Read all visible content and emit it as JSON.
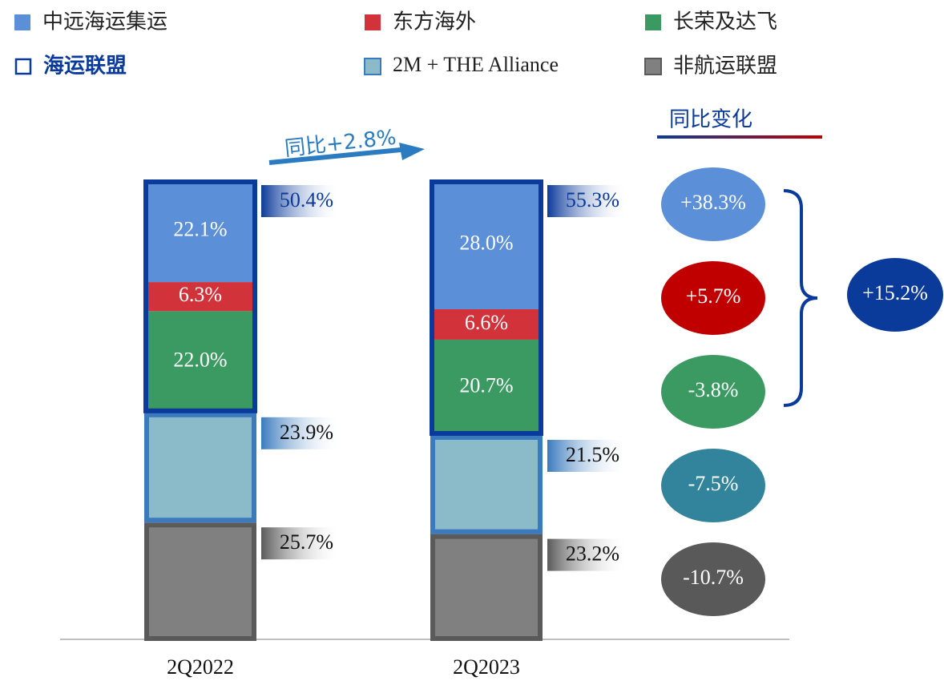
{
  "chart_data": {
    "type": "bar",
    "stacked": true,
    "categories": [
      "2Q2022",
      "2Q2023"
    ],
    "series": [
      {
        "name": "中远海运集运",
        "color": "#5b8fd8",
        "edge": "#5b8fd8",
        "values": [
          22.1,
          28.0
        ],
        "value_labels": [
          "22.1%",
          "28.0%"
        ]
      },
      {
        "name": "东方海外",
        "color": "#d2323a",
        "edge": "#d2323a",
        "values": [
          6.3,
          6.6
        ],
        "value_labels": [
          "6.3%",
          "6.6%"
        ]
      },
      {
        "name": "长荣及达飞",
        "color": "#3a9a62",
        "edge": "#3a9a62",
        "values": [
          22.0,
          20.7
        ],
        "value_labels": [
          "22.0%",
          "20.7%"
        ]
      },
      {
        "name": "2M + THE Alliance",
        "color": "#8bbac8",
        "edge": "#3a7abd",
        "values": [
          23.9,
          21.5
        ],
        "value_labels": [
          "23.9%",
          "21.5%"
        ]
      },
      {
        "name": "非航运联盟",
        "color": "#808080",
        "edge": "#5a5a5a",
        "values": [
          25.7,
          23.2
        ],
        "value_labels": [
          "25.7%",
          "23.2%"
        ]
      }
    ],
    "group": {
      "name": "海运联盟",
      "color": "#0a3a9a",
      "members": [
        0,
        1,
        2
      ],
      "values": [
        50.4,
        55.3
      ],
      "value_labels": [
        "50.4%",
        "55.3%"
      ],
      "change": 15.2,
      "change_label": "+15.2%"
    },
    "total_change_label": "同比+2.8%",
    "changes": {
      "title": "同比变化",
      "values": [
        38.3,
        5.7,
        -3.8,
        -7.5,
        -10.7
      ],
      "value_labels": [
        "+38.3%",
        "+5.7%",
        "-3.8%",
        "-7.5%",
        "-10.7%"
      ],
      "colors": [
        "#5b8fd8",
        "#c00000",
        "#3a9a62",
        "#31849b",
        "#595959"
      ]
    }
  }
}
